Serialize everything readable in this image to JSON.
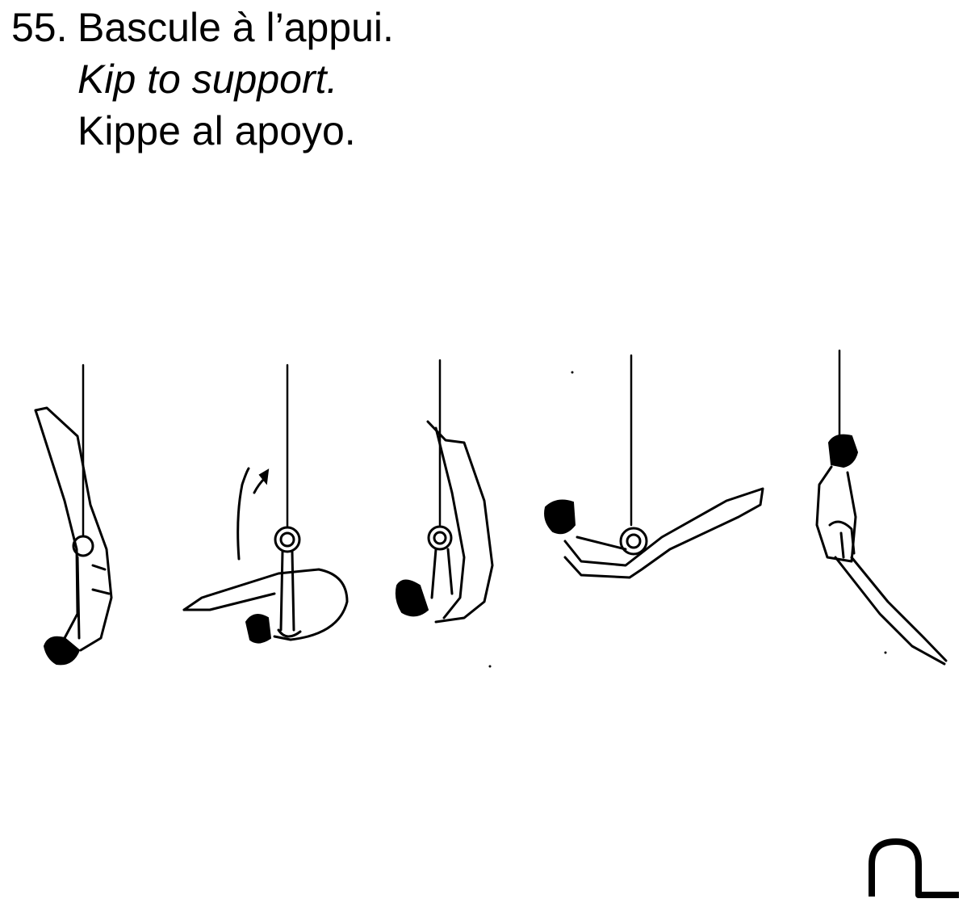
{
  "element": {
    "number": "55.",
    "name_fr": "Bascule à l’appui.",
    "name_en": "Kip to support.",
    "name_es": "Kippe al apoyo."
  },
  "illustration": {
    "icon": "gymnast-rings-sequence-icon",
    "phases": 5
  },
  "symbol": {
    "icon": "kip-to-support-symbol-icon"
  }
}
